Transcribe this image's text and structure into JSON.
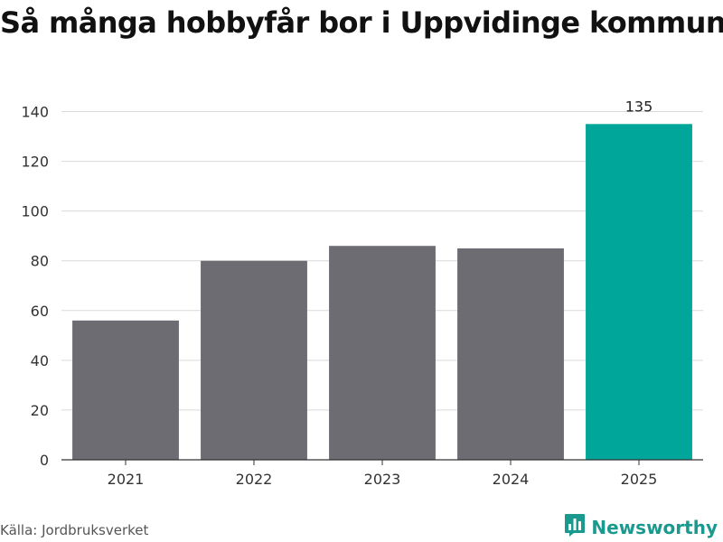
{
  "title": "Så många hobbyfår bor i Uppvidinge kommun",
  "source": "Källa: Jordbruksverket",
  "brand": {
    "name": "Newsworthy",
    "icon": "newsworthy-logo-icon"
  },
  "colors": {
    "bar": "#6d6c72",
    "highlight": "#00a699",
    "grid": "#d9d9d9",
    "axis": "#333333"
  },
  "chart_data": {
    "type": "bar",
    "categories": [
      "2021",
      "2022",
      "2023",
      "2024",
      "2025"
    ],
    "values": [
      56,
      80,
      86,
      85,
      135
    ],
    "highlight_index": 4,
    "data_labels": [
      null,
      null,
      null,
      null,
      "135"
    ],
    "ylim": [
      0,
      150
    ],
    "yticks": [
      0,
      20,
      40,
      60,
      80,
      100,
      120,
      140
    ],
    "grid": true,
    "xlabel": "",
    "ylabel": ""
  }
}
